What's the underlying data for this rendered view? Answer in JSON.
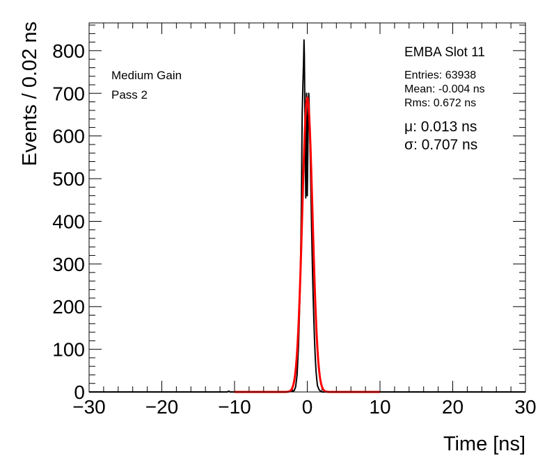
{
  "chart_data": {
    "type": "histogram",
    "title": "",
    "xlabel": "Time [ns]",
    "ylabel": "Events / 0.02 ns",
    "xlim": [
      -30,
      30
    ],
    "ylim": [
      0,
      865
    ],
    "x_ticks": [
      -30,
      -20,
      -10,
      0,
      10,
      20,
      30
    ],
    "y_ticks": [
      0,
      100,
      200,
      300,
      400,
      500,
      600,
      700,
      800
    ],
    "grid": false,
    "annotations": {
      "left": [
        "Medium Gain",
        "Pass 2"
      ],
      "right_title": "EMBA Slot 11",
      "stats": [
        "Entries: 63938",
        "Mean: -0.004 ns",
        "Rms: 0.672 ns"
      ],
      "fit": [
        "μ: 0.013 ns",
        "σ: 0.707 ns"
      ]
    },
    "series": [
      {
        "name": "",
        "style": "histogram",
        "color": "#000000",
        "points": [
          [
            -30,
            0
          ],
          [
            -11.0,
            0
          ],
          [
            -10.8,
            2
          ],
          [
            -10.6,
            0
          ],
          [
            -3.0,
            0
          ],
          [
            -2.2,
            1
          ],
          [
            -1.8,
            3
          ],
          [
            -1.6,
            12
          ],
          [
            -1.4,
            40
          ],
          [
            -1.2,
            110
          ],
          [
            -1.0,
            230
          ],
          [
            -0.9,
            330
          ],
          [
            -0.8,
            450
          ],
          [
            -0.75,
            560
          ],
          [
            -0.7,
            650
          ],
          [
            -0.6,
            720
          ],
          [
            -0.5,
            780
          ],
          [
            -0.45,
            825
          ],
          [
            -0.4,
            790
          ],
          [
            -0.35,
            700
          ],
          [
            -0.3,
            610
          ],
          [
            -0.25,
            520
          ],
          [
            -0.2,
            455
          ],
          [
            -0.15,
            560
          ],
          [
            -0.1,
            700
          ],
          [
            -0.05,
            640
          ],
          [
            0.0,
            460
          ],
          [
            0.05,
            520
          ],
          [
            0.1,
            600
          ],
          [
            0.15,
            660
          ],
          [
            0.2,
            700
          ],
          [
            0.25,
            680
          ],
          [
            0.3,
            640
          ],
          [
            0.4,
            560
          ],
          [
            0.5,
            470
          ],
          [
            0.6,
            380
          ],
          [
            0.7,
            300
          ],
          [
            0.8,
            230
          ],
          [
            0.9,
            170
          ],
          [
            1.0,
            120
          ],
          [
            1.1,
            80
          ],
          [
            1.2,
            50
          ],
          [
            1.3,
            30
          ],
          [
            1.4,
            15
          ],
          [
            1.6,
            6
          ],
          [
            1.8,
            2
          ],
          [
            2.0,
            0
          ],
          [
            30,
            0
          ]
        ]
      },
      {
        "name": "",
        "style": "gaussian-fit",
        "color": "#ff0000",
        "amplitude": 690,
        "mean": 0.013,
        "sigma": 0.707,
        "range": [
          -10,
          10
        ]
      }
    ]
  }
}
